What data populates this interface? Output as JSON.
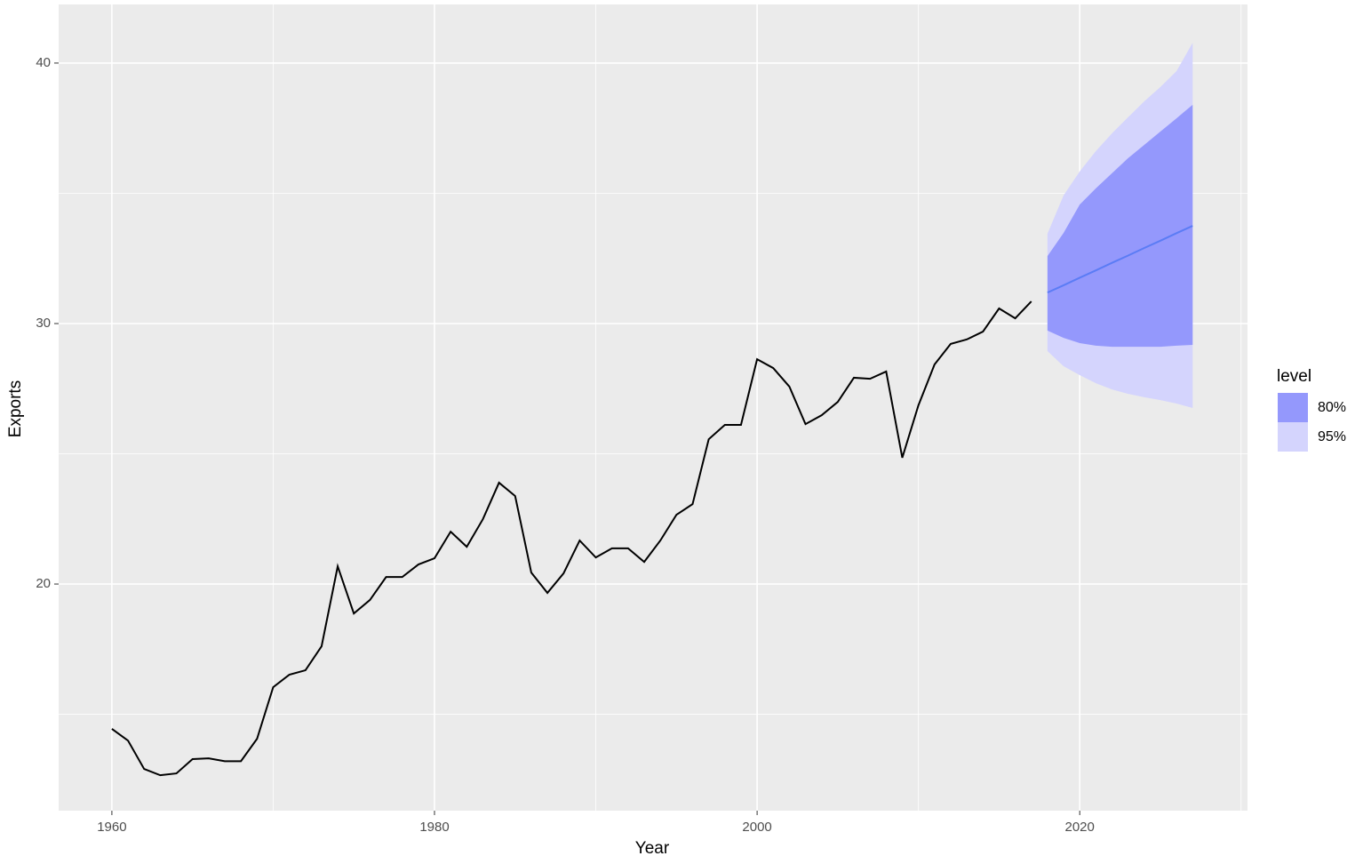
{
  "chart_data": {
    "type": "line",
    "x_label": "Year",
    "y_label": "Exports",
    "x": [
      1960,
      1961,
      1962,
      1963,
      1964,
      1965,
      1966,
      1967,
      1968,
      1969,
      1970,
      1971,
      1972,
      1973,
      1974,
      1975,
      1976,
      1977,
      1978,
      1979,
      1980,
      1981,
      1982,
      1983,
      1984,
      1985,
      1986,
      1987,
      1988,
      1989,
      1990,
      1991,
      1992,
      1993,
      1994,
      1995,
      1996,
      1997,
      1998,
      1999,
      2000,
      2001,
      2002,
      2003,
      2004,
      2005,
      2006,
      2007,
      2008,
      2009,
      2010,
      2011,
      2012,
      2013,
      2014,
      2015,
      2016,
      2017
    ],
    "values": [
      14.44,
      13.99,
      12.9,
      12.66,
      12.73,
      13.28,
      13.31,
      13.2,
      13.2,
      14.06,
      16.04,
      16.52,
      16.69,
      17.61,
      20.68,
      18.87,
      19.39,
      20.27,
      20.27,
      20.75,
      20.99,
      22.01,
      21.43,
      22.49,
      23.89,
      23.38,
      20.44,
      19.66,
      20.41,
      21.67,
      21.02,
      21.37,
      21.37,
      20.85,
      21.67,
      22.66,
      23.07,
      25.56,
      26.11,
      26.11,
      28.63,
      28.29,
      27.58,
      26.14,
      26.48,
      26.99,
      27.92,
      27.88,
      28.16,
      24.85,
      26.86,
      28.43,
      29.22,
      29.39,
      29.69,
      30.58,
      30.2,
      30.85
    ],
    "color": "#000000",
    "forecast": {
      "x": [
        2018,
        2019,
        2020,
        2021,
        2022,
        2023,
        2024,
        2025,
        2026,
        2027
      ],
      "values": [
        31.19,
        31.47,
        31.76,
        32.04,
        32.33,
        32.61,
        32.9,
        33.18,
        33.47,
        33.75
      ],
      "color": "#5b7cf5"
    },
    "legend_title": "level",
    "bands": [
      {
        "name": "80%",
        "color": "#9498fc",
        "lower": [
          29.73,
          29.45,
          29.25,
          29.15,
          29.11,
          29.11,
          29.11,
          29.11,
          29.15,
          29.18
        ],
        "upper": [
          32.59,
          33.48,
          34.57,
          35.19,
          35.77,
          36.35,
          36.86,
          37.37,
          37.88,
          38.4
        ]
      },
      {
        "name": "95%",
        "color": "#d4d4fd",
        "lower": [
          28.94,
          28.36,
          28.02,
          27.71,
          27.47,
          27.3,
          27.17,
          27.06,
          26.93,
          26.76
        ],
        "upper": [
          33.45,
          34.92,
          35.84,
          36.62,
          37.3,
          37.92,
          38.53,
          39.08,
          39.69,
          40.78
        ]
      }
    ],
    "xlim": [
      1956.7,
      2030.4
    ],
    "ylim": [
      11.3,
      42.25
    ],
    "xticks": [
      1960,
      1980,
      2000,
      2020
    ],
    "yticks": [
      20,
      30,
      40
    ],
    "minor_xticks": [
      1970,
      1990,
      2010,
      2030
    ],
    "minor_yticks": [
      15,
      25,
      35
    ],
    "grid": true
  }
}
